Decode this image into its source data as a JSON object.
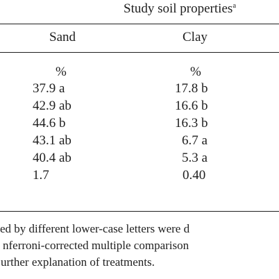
{
  "header": {
    "caption": "Study soil properties",
    "caption_mark": "a"
  },
  "columns": [
    "Sand",
    "Clay"
  ],
  "units": [
    "%",
    "%"
  ],
  "rows": [
    [
      "37.9 a",
      "17.8 b"
    ],
    [
      "42.9 ab",
      "16.6 b"
    ],
    [
      "44.6 b",
      "16.3 b"
    ],
    [
      "43.1 ab",
      "6.7 a"
    ],
    [
      "40.4 ab",
      "5.3 a"
    ],
    [
      "1.7",
      "0.40"
    ]
  ],
  "footnotes": [
    "ed by different lower-case letters were d",
    "nferroni-corrected multiple comparison",
    "urther explanation of treatments."
  ]
}
